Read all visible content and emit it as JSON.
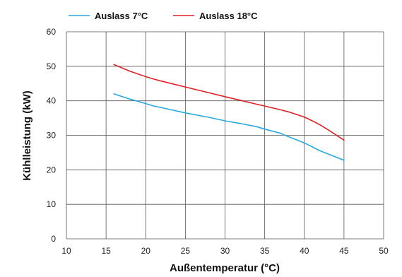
{
  "chart_data": {
    "type": "line",
    "title": "",
    "xlabel": "Außentemperatur (°C)",
    "ylabel": "Kühlleistung (kW)",
    "xlim": [
      10,
      50
    ],
    "ylim": [
      0,
      60
    ],
    "xticks": [
      10,
      15,
      20,
      25,
      30,
      35,
      40,
      45,
      50
    ],
    "yticks": [
      0,
      10,
      20,
      30,
      40,
      50,
      60
    ],
    "grid": true,
    "legend_position": "top-left",
    "series": [
      {
        "name": "Auslass 7°C",
        "color": "#29a8e0",
        "x": [
          16,
          18,
          20,
          21,
          22,
          25,
          28,
          30,
          32,
          34,
          35,
          37,
          38,
          40,
          42,
          45
        ],
        "y": [
          42.0,
          40.5,
          39.2,
          38.5,
          38.0,
          36.5,
          35.2,
          34.2,
          33.4,
          32.5,
          31.8,
          30.6,
          29.6,
          27.8,
          25.5,
          22.8
        ]
      },
      {
        "name": "Auslass 18°C",
        "color": "#e02025",
        "x": [
          16,
          18,
          20,
          21,
          22,
          25,
          28,
          30,
          32,
          34,
          35,
          37,
          38,
          40,
          41,
          42,
          43,
          45
        ],
        "y": [
          50.5,
          48.6,
          47.0,
          46.3,
          45.7,
          44.0,
          42.3,
          41.2,
          40.1,
          39.0,
          38.5,
          37.4,
          36.8,
          35.3,
          34.2,
          33.0,
          31.6,
          28.6
        ]
      }
    ]
  }
}
